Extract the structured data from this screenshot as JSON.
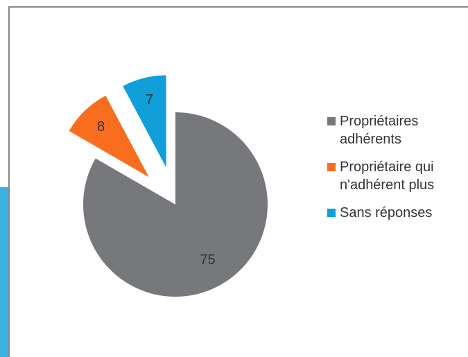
{
  "chart_data": {
    "type": "pie",
    "series": [
      {
        "name": "Propriétaires adhérents",
        "color": "#77787c",
        "value": 75
      },
      {
        "name": "Propriétaire qui n'adhérent plus",
        "color": "#f96d1e",
        "value": 8
      },
      {
        "name": "Sans réponses",
        "color": "#109fd8",
        "value": 7
      }
    ]
  }
}
